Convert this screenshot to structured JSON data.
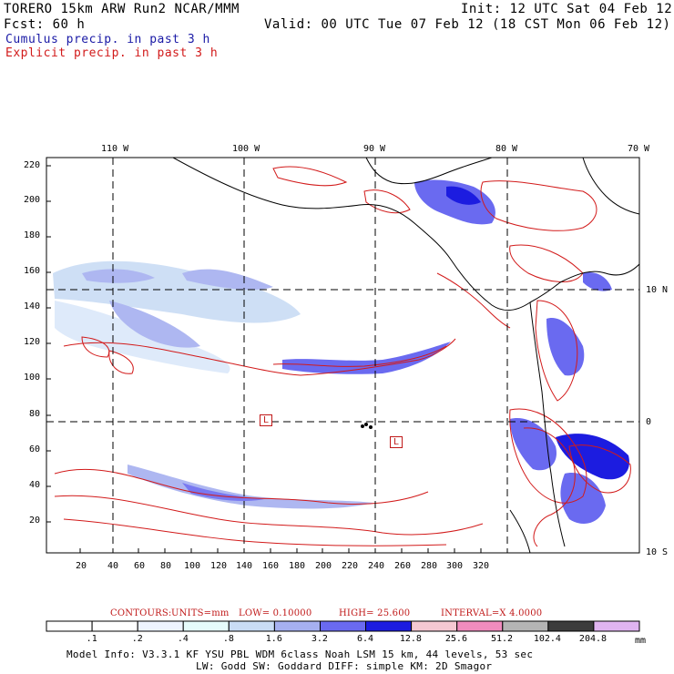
{
  "header": {
    "model_line": "TORERO  15km ARW   Run2    NCAR/MMM",
    "init": "Init: 12 UTC Sat 04 Feb 12",
    "forecast": "Fcst:    60 h",
    "valid": "Valid: 00 UTC Tue 07 Feb 12 (18 CST Mon 06 Feb 12)",
    "legend_cumulus": "Cumulus precip. in past 3 h",
    "legend_explicit": "Explicit precip. in past 3 h"
  },
  "map": {
    "lon_labels": [
      "110 W",
      "100 W",
      "90 W",
      "80 W",
      "70 W"
    ],
    "lat_labels": [
      "10 N",
      "0",
      "10 S"
    ],
    "y_ticks": [
      "220",
      "200",
      "180",
      "160",
      "140",
      "120",
      "100",
      "80",
      "60",
      "40",
      "20"
    ],
    "x_ticks": [
      "20",
      "40",
      "60",
      "80",
      "100",
      "120",
      "140",
      "160",
      "180",
      "200",
      "220",
      "240",
      "260",
      "280",
      "300",
      "320"
    ],
    "low_markers": [
      "L",
      "L"
    ]
  },
  "contours": {
    "label": "CONTOURS:",
    "units": "UNITS=mm",
    "low": "LOW= 0.10000",
    "high": "HIGH= 25.600",
    "interval": "INTERVAL=X  4.0000"
  },
  "colorbar": {
    "labels": [
      ".1",
      ".2",
      ".4",
      ".8",
      "1.6",
      "3.2",
      "6.4",
      "12.8",
      "25.6",
      "51.2",
      "102.4",
      "204.8"
    ],
    "unit": "mm",
    "colors": [
      "#ffffff",
      "#ffffff",
      "#eef4ff",
      "#e6fbfb",
      "#c9dcf5",
      "#a6b0f0",
      "#6a6af0",
      "#1c1ce0",
      "#f5c8d2",
      "#f08cbe",
      "#b4b4b4",
      "#3c3c3c",
      "#e0b4f0"
    ]
  },
  "model_info": {
    "line1": "Model Info: V3.3.1   KF    YSU PBL  WDM 6class  Noah LSM  15 km,   44 levels,   53 sec",
    "line2": "LW: Godd SW: Goddard DIFF: simple KM: 2D Smagor"
  }
}
